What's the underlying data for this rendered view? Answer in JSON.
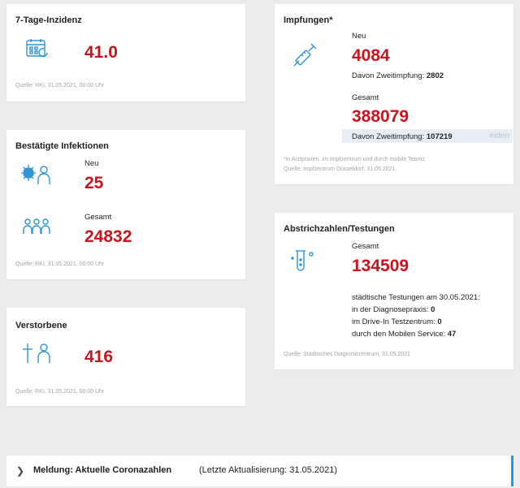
{
  "inzidenz": {
    "title": "7-Tage-Inzidenz",
    "value": "41.0",
    "source": "Quelle: RKI, 31.05.2021, 00:00 Uhr"
  },
  "infektionen": {
    "title": "Bestätigte Infektionen",
    "new_label": "Neu",
    "new_value": "25",
    "total_label": "Gesamt",
    "total_value": "24832",
    "source": "Quelle: RKI, 31.05.2021, 00:00 Uhr"
  },
  "verstorbene": {
    "title": "Verstorbene",
    "value": "416",
    "source": "Quelle: RKI, 31.05.2021, 00:00 Uhr"
  },
  "impfungen": {
    "title": "Impfungen*",
    "new_label": "Neu",
    "new_value": "4084",
    "new_second_label": "Davon Zweitimpfung:",
    "new_second_value": "2802",
    "total_label": "Gesamt",
    "total_value": "388079",
    "total_second_label": "Davon Zweitimpfung:",
    "total_second_value": "107219",
    "ghost_button": "eiden",
    "footnote": "*in Arztpraxen, im Impfzentrum und durch mobile Teams",
    "source": "Quelle: Impfzentrum Düsseldorf, 31.05.2021"
  },
  "testungen": {
    "title": "Abstrichzahlen/Testungen",
    "total_label": "Gesamt",
    "total_value": "134509",
    "line1": "städtische Testungen am 30.05.2021:",
    "line2_label": "in der Diagnosepraxis:",
    "line2_value": "0",
    "line3_label": "im Drive-In Testzentrum:",
    "line3_value": "0",
    "line4_label": "durch den Mobilen Service:",
    "line4_value": "47",
    "source": "Quelle: Städtisches Diagnosezentrum, 31.05.2021"
  },
  "meldung": {
    "title": "Meldung: Aktuelle Coronazahlen",
    "updated": "(Letzte Aktualisierung: 31.05.2021)"
  },
  "colors": {
    "accent_red": "#c8141c",
    "icon_blue": "#2f95d6",
    "bar_border": "#2f95d6"
  }
}
